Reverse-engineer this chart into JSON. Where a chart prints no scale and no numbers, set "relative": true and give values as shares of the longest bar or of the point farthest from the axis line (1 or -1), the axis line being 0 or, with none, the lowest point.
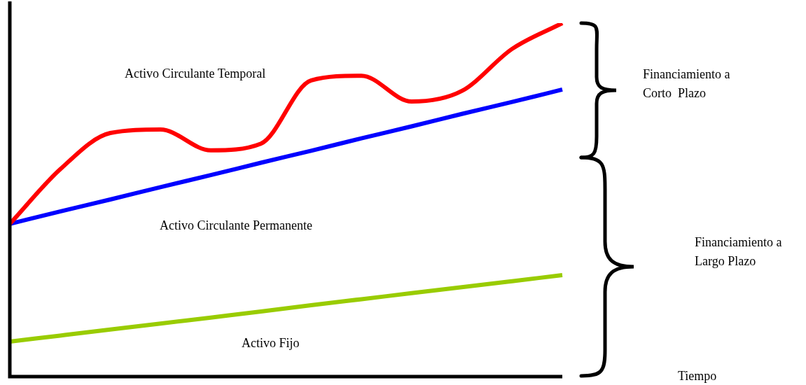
{
  "chart_data": {
    "type": "line",
    "relative": true,
    "categories": [
      null,
      null,
      null,
      null,
      null,
      null,
      null,
      null,
      null,
      null,
      null,
      null
    ],
    "series": [
      {
        "color": "#ff0000",
        "values": [
          0.432,
          0.586,
          0.689,
          0.699,
          0.64,
          0.659,
          0.838,
          0.851,
          0.778,
          0.808,
          0.927,
          1.0
        ]
      },
      {
        "color": "#0000ff",
        "values": [
          0.432,
          0.467,
          0.501,
          0.536,
          0.57,
          0.605,
          0.639,
          0.674,
          0.708,
          0.743,
          0.777,
          0.812
        ]
      },
      {
        "color": "#99cc00",
        "values": [
          0.099,
          0.116,
          0.133,
          0.15,
          0.167,
          0.184,
          0.202,
          0.219,
          0.236,
          0.253,
          0.27,
          0.287
        ]
      }
    ],
    "annotations": [
      "Activo Circulante Temporal",
      "Activo Circulante Permanente",
      "Activo Fijo",
      "Financiamiento a\nCorto  Plazo",
      "Financiamiento a\nLargo Plazo",
      "Tiempo"
    ],
    "legend": false,
    "marker": "none",
    "line_style": "solid"
  }
}
